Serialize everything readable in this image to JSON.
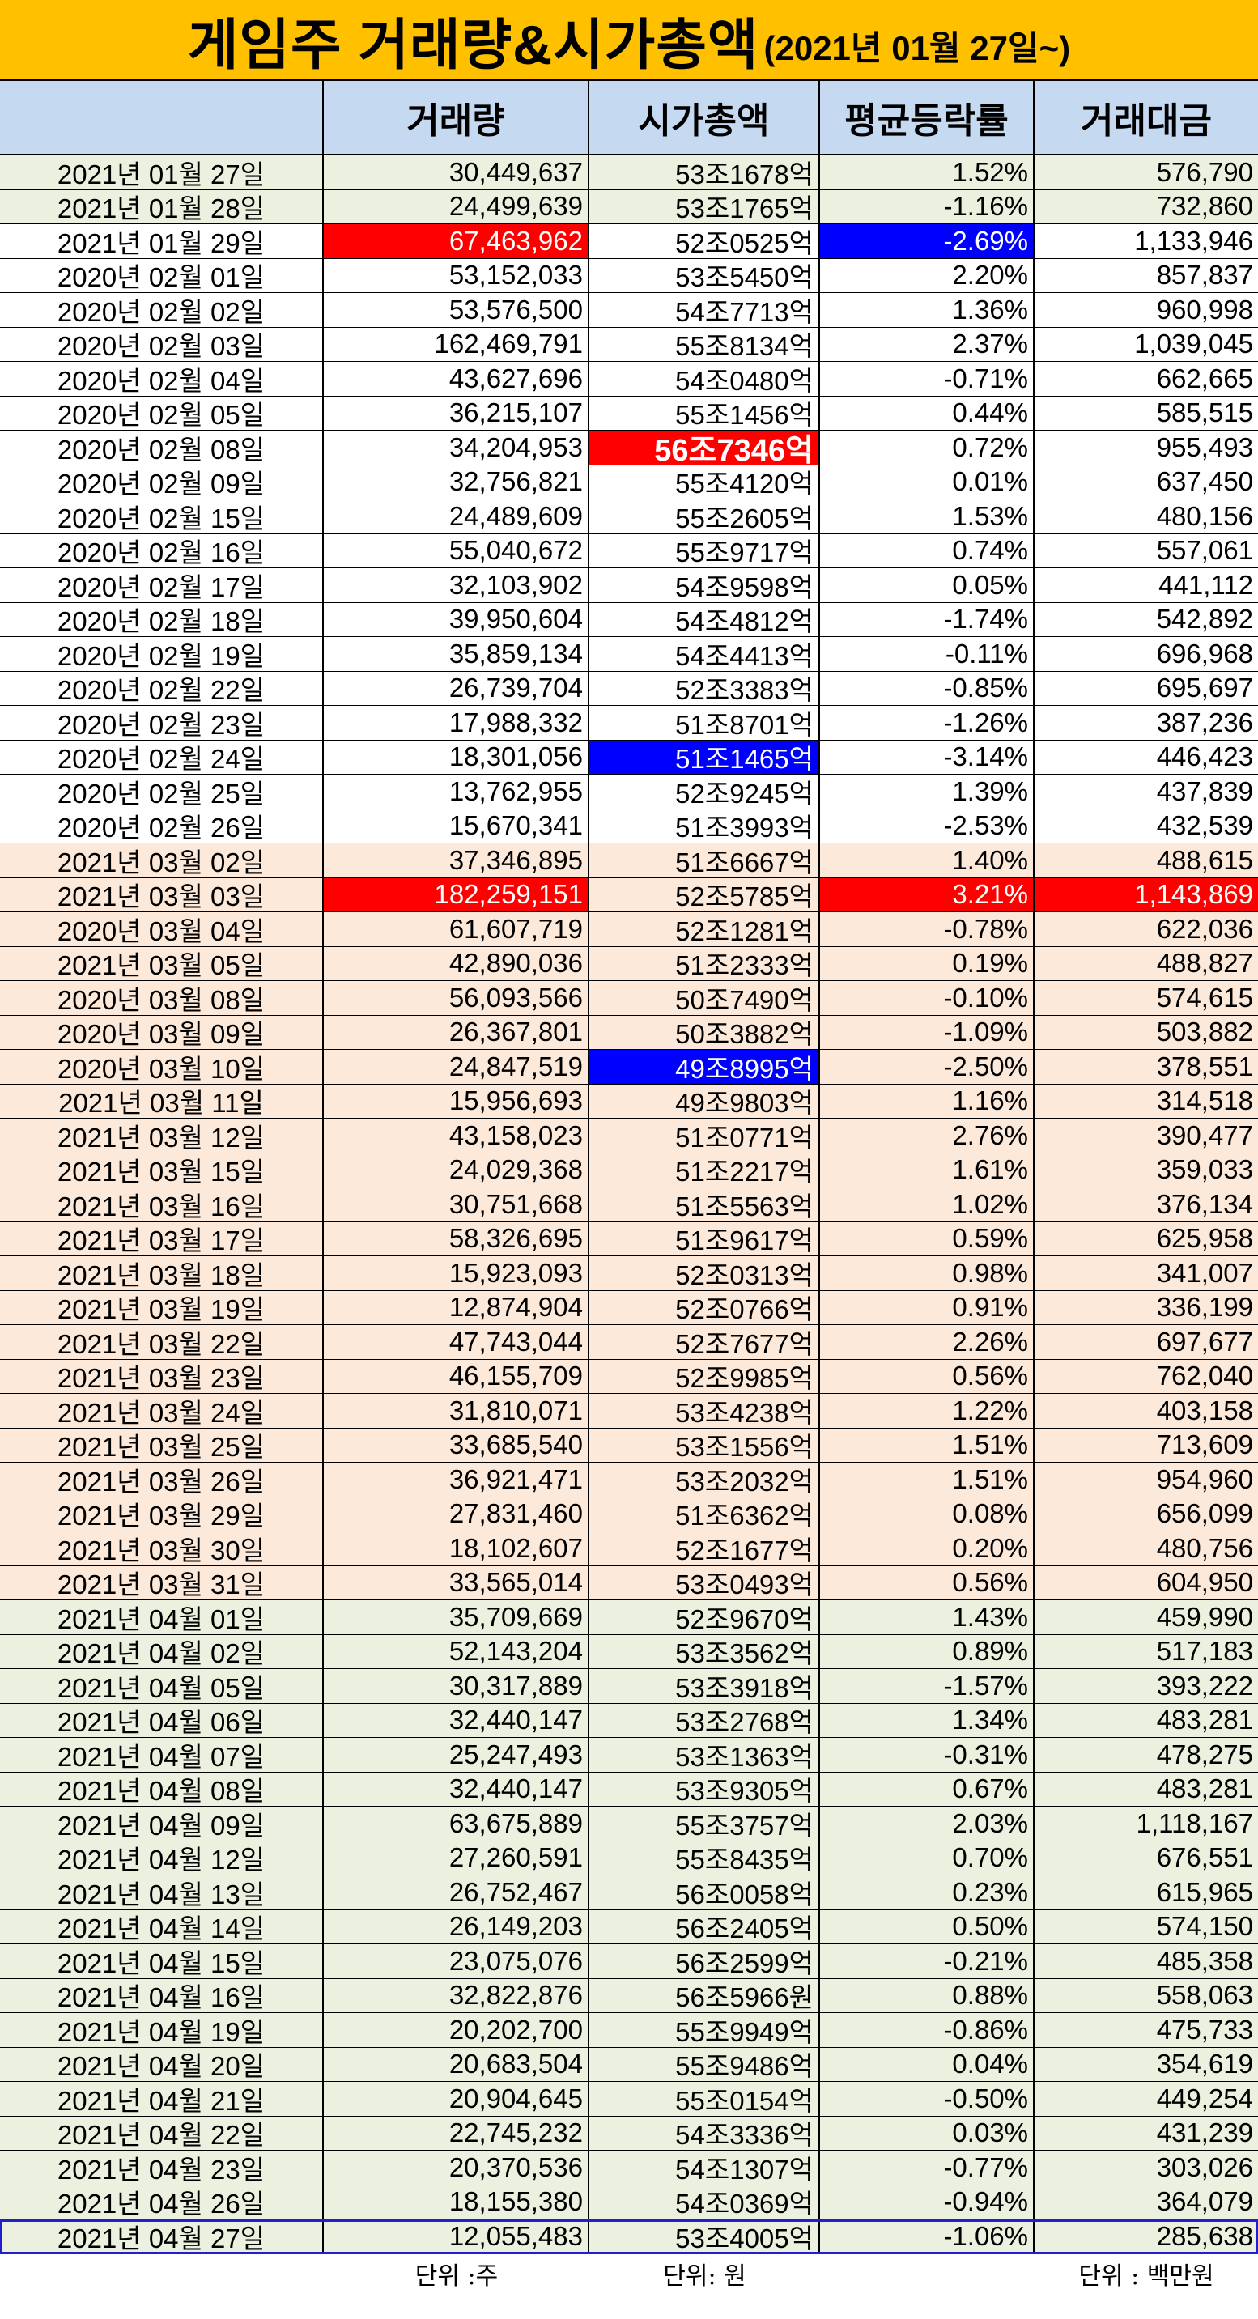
{
  "title": {
    "main": "게임주 거래량&시가총액",
    "sub": "(2021년 01월 27일~)"
  },
  "headers": [
    "",
    "거래량",
    "시가총액",
    "평균등락률",
    "거래대금"
  ],
  "rows": [
    [
      "2021년 01월 27일",
      "30,449,637",
      "53조1678억",
      "1.52%",
      "576,790"
    ],
    [
      "2021년 01월 28일",
      "24,499,639",
      "53조1765억",
      "-1.16%",
      "732,860"
    ],
    [
      "2021년 01월 29일",
      "67,463,962",
      "52조0525억",
      "-2.69%",
      "1,133,946"
    ],
    [
      "2020년 02월 01일",
      "53,152,033",
      "53조5450억",
      "2.20%",
      "857,837"
    ],
    [
      "2020년 02월 02일",
      "53,576,500",
      "54조7713억",
      "1.36%",
      "960,998"
    ],
    [
      "2020년 02월 03일",
      "162,469,791",
      "55조8134억",
      "2.37%",
      "1,039,045"
    ],
    [
      "2020년 02월 04일",
      "43,627,696",
      "54조0480억",
      "-0.71%",
      "662,665"
    ],
    [
      "2020년 02월 05일",
      "36,215,107",
      "55조1456억",
      "0.44%",
      "585,515"
    ],
    [
      "2020년 02월 08일",
      "34,204,953",
      "56조7346억",
      "0.72%",
      "955,493"
    ],
    [
      "2020년 02월 09일",
      "32,756,821",
      "55조4120억",
      "0.01%",
      "637,450"
    ],
    [
      "2020년 02월 15일",
      "24,489,609",
      "55조2605억",
      "1.53%",
      "480,156"
    ],
    [
      "2020년 02월 16일",
      "55,040,672",
      "55조9717억",
      "0.74%",
      "557,061"
    ],
    [
      "2020년 02월 17일",
      "32,103,902",
      "54조9598억",
      "0.05%",
      "441,112"
    ],
    [
      "2020년 02월 18일",
      "39,950,604",
      "54조4812억",
      "-1.74%",
      "542,892"
    ],
    [
      "2020년 02월 19일",
      "35,859,134",
      "54조4413억",
      "-0.11%",
      "696,968"
    ],
    [
      "2020년 02월 22일",
      "26,739,704",
      "52조3383억",
      "-0.85%",
      "695,697"
    ],
    [
      "2020년 02월 23일",
      "17,988,332",
      "51조8701억",
      "-1.26%",
      "387,236"
    ],
    [
      "2020년 02월 24일",
      "18,301,056",
      "51조1465억",
      "-3.14%",
      "446,423"
    ],
    [
      "2020년 02월 25일",
      "13,762,955",
      "52조9245억",
      "1.39%",
      "437,839"
    ],
    [
      "2020년 02월 26일",
      "15,670,341",
      "51조3993억",
      "-2.53%",
      "432,539"
    ],
    [
      "2021년 03월 02일",
      "37,346,895",
      "51조6667억",
      "1.40%",
      "488,615"
    ],
    [
      "2021년 03월 03일",
      "182,259,151",
      "52조5785억",
      "3.21%",
      "1,143,869"
    ],
    [
      "2020년 03월 04일",
      "61,607,719",
      "52조1281억",
      "-0.78%",
      "622,036"
    ],
    [
      "2021년 03월 05일",
      "42,890,036",
      "51조2333억",
      "0.19%",
      "488,827"
    ],
    [
      "2020년 03월 08일",
      "56,093,566",
      "50조7490억",
      "-0.10%",
      "574,615"
    ],
    [
      "2020년 03월 09일",
      "26,367,801",
      "50조3882억",
      "-1.09%",
      "503,882"
    ],
    [
      "2020년 03월 10일",
      "24,847,519",
      "49조8995억",
      "-2.50%",
      "378,551"
    ],
    [
      "2021년 03월 11일",
      "15,956,693",
      "49조9803억",
      "1.16%",
      "314,518"
    ],
    [
      "2021년 03월 12일",
      "43,158,023",
      "51조0771억",
      "2.76%",
      "390,477"
    ],
    [
      "2021년 03월 15일",
      "24,029,368",
      "51조2217억",
      "1.61%",
      "359,033"
    ],
    [
      "2021년 03월 16일",
      "30,751,668",
      "51조5563억",
      "1.02%",
      "376,134"
    ],
    [
      "2021년 03월 17일",
      "58,326,695",
      "51조9617억",
      "0.59%",
      "625,958"
    ],
    [
      "2021년 03월 18일",
      "15,923,093",
      "52조0313억",
      "0.98%",
      "341,007"
    ],
    [
      "2021년 03월 19일",
      "12,874,904",
      "52조0766억",
      "0.91%",
      "336,199"
    ],
    [
      "2021년 03월 22일",
      "47,743,044",
      "52조7677억",
      "2.26%",
      "697,677"
    ],
    [
      "2021년 03월 23일",
      "46,155,709",
      "52조9985억",
      "0.56%",
      "762,040"
    ],
    [
      "2021년 03월 24일",
      "31,810,071",
      "53조4238억",
      "1.22%",
      "403,158"
    ],
    [
      "2021년 03월 25일",
      "33,685,540",
      "53조1556억",
      "1.51%",
      "713,609"
    ],
    [
      "2021년 03월 26일",
      "36,921,471",
      "53조2032억",
      "1.51%",
      "954,960"
    ],
    [
      "2021년 03월 29일",
      "27,831,460",
      "51조6362억",
      "0.08%",
      "656,099"
    ],
    [
      "2021년 03월 30일",
      "18,102,607",
      "52조1677억",
      "0.20%",
      "480,756"
    ],
    [
      "2021년 03월 31일",
      "33,565,014",
      "53조0493억",
      "0.56%",
      "604,950"
    ],
    [
      "2021년 04월 01일",
      "35,709,669",
      "52조9670억",
      "1.43%",
      "459,990"
    ],
    [
      "2021년 04월 02일",
      "52,143,204",
      "53조3562억",
      "0.89%",
      "517,183"
    ],
    [
      "2021년 04월 05일",
      "30,317,889",
      "53조3918억",
      "-1.57%",
      "393,222"
    ],
    [
      "2021년 04월 06일",
      "32,440,147",
      "53조2768억",
      "1.34%",
      "483,281"
    ],
    [
      "2021년 04월 07일",
      "25,247,493",
      "53조1363억",
      "-0.31%",
      "478,275"
    ],
    [
      "2021년 04월 08일",
      "32,440,147",
      "53조9305억",
      "0.67%",
      "483,281"
    ],
    [
      "2021년 04월 09일",
      "63,675,889",
      "55조3757억",
      "2.03%",
      "1,118,167"
    ],
    [
      "2021년 04월 12일",
      "27,260,591",
      "55조8435억",
      "0.70%",
      "676,551"
    ],
    [
      "2021년 04월 13일",
      "26,752,467",
      "56조0058억",
      "0.23%",
      "615,965"
    ],
    [
      "2021년 04월 14일",
      "26,149,203",
      "56조2405억",
      "0.50%",
      "574,150"
    ],
    [
      "2021년 04월 15일",
      "23,075,076",
      "56조2599억",
      "-0.21%",
      "485,358"
    ],
    [
      "2021년 04월 16일",
      "32,822,876",
      "56조5966원",
      "0.88%",
      "558,063"
    ],
    [
      "2021년 04월 19일",
      "20,202,700",
      "55조9949억",
      "-0.86%",
      "475,733"
    ],
    [
      "2021년 04월 20일",
      "20,683,504",
      "55조9486억",
      "0.04%",
      "354,619"
    ],
    [
      "2021년 04월 21일",
      "20,904,645",
      "55조0154억",
      "-0.50%",
      "449,254"
    ],
    [
      "2021년 04월 22일",
      "22,745,232",
      "54조3336억",
      "0.03%",
      "431,239"
    ],
    [
      "2021년 04월 23일",
      "20,370,536",
      "54조1307억",
      "-0.77%",
      "303,026"
    ],
    [
      "2021년 04월 26일",
      "18,155,380",
      "54조0369억",
      "-0.94%",
      "364,079"
    ],
    [
      "2021년 04월 27일",
      "12,055,483",
      "53조4005억",
      "-1.06%",
      "285,638"
    ]
  ],
  "row_backgrounds": [
    "g",
    "g",
    "w",
    "w",
    "w",
    "w",
    "w",
    "w",
    "w",
    "w",
    "w",
    "w",
    "w",
    "w",
    "w",
    "w",
    "w",
    "w",
    "w",
    "w",
    "p",
    "p",
    "p",
    "p",
    "p",
    "p",
    "p",
    "p",
    "p",
    "p",
    "p",
    "p",
    "p",
    "p",
    "p",
    "p",
    "p",
    "p",
    "p",
    "p",
    "p",
    "p",
    "g",
    "g",
    "g",
    "g",
    "g",
    "g",
    "g",
    "g",
    "g",
    "g",
    "g",
    "g",
    "g",
    "g",
    "g",
    "g",
    "g",
    "g",
    "g"
  ],
  "highlights": {
    "2-1": "hl-red",
    "2-3": "hl-blue",
    "2-4": "txt-red",
    "5-1": "txt-red",
    "5-2": "txt-red",
    "8-2": "hl-red big",
    "16-4": "txt-blue",
    "17-2": "hl-blue",
    "18-1": "txt-blue",
    "21-1": "hl-red",
    "21-3": "hl-red",
    "21-4": "hl-red",
    "26-2": "hl-blue",
    "27-4": "txt-blue",
    "33-1": "txt-blue",
    "36-2": "txt-red",
    "42-2": "txt-blue",
    "48-1": "txt-red",
    "48-4": "txt-red",
    "53-2": "txt-red",
    "60-1": "txt-blue",
    "60-4": "txt-blue"
  },
  "footer": {
    "volume_unit": "단위 :주",
    "cap_unit": "단위: 원",
    "amount_unit": "단위 : 백만원"
  },
  "colors": {
    "title_bg": "#ffc000",
    "header_bg": "#c5d9f1",
    "green_row": "#ebf1de",
    "pink_row": "#fde9d9",
    "up": "#ff0000",
    "down": "#0000ff"
  }
}
